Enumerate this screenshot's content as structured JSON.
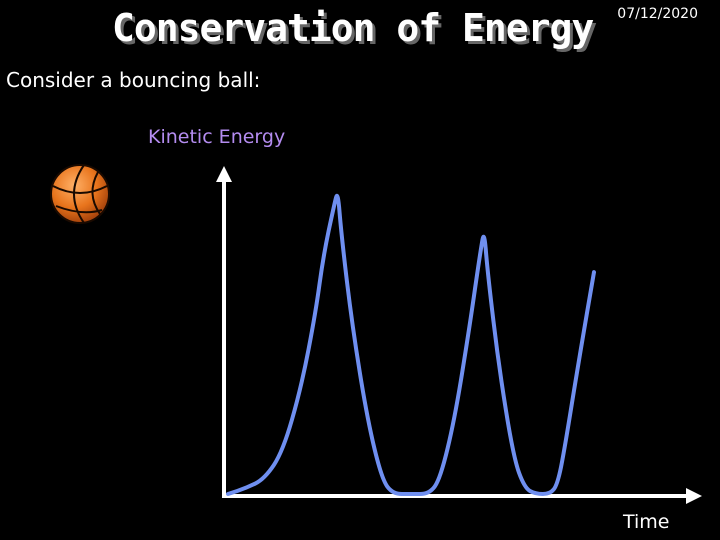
{
  "slide": {
    "title": "Conservation of Energy",
    "date": "07/12/2020",
    "subtitle": "Consider a bouncing ball:"
  },
  "colors": {
    "background": "#000000",
    "text": "#ffffff",
    "curve": "#6f8ff0",
    "ylabel": "#b48cf0",
    "ball": "#e8741c"
  },
  "icons": [
    "basketball-icon"
  ],
  "chart_data": {
    "type": "line",
    "title": "",
    "xlabel": "Time",
    "ylabel": "Kinetic Energy",
    "axes_ticks": false,
    "grid": false,
    "series": [
      {
        "x": [
          0,
          0.05,
          0.1,
          0.15,
          0.2,
          0.24,
          0.26,
          0.29,
          0.3,
          0.31,
          0.34,
          0.38,
          0.42,
          0.45,
          0.5,
          0.55,
          0.58,
          0.62,
          0.66,
          0.69,
          0.7,
          0.71,
          0.74,
          0.78,
          0.81,
          0.84,
          0.88,
          0.9,
          0.92,
          0.96,
          1.0
        ],
        "y": [
          0,
          0.02,
          0.05,
          0.14,
          0.35,
          0.6,
          0.78,
          0.95,
          1.0,
          0.85,
          0.55,
          0.25,
          0.05,
          0,
          0,
          0,
          0.05,
          0.25,
          0.55,
          0.8,
          0.87,
          0.72,
          0.42,
          0.12,
          0.02,
          0,
          0,
          0.03,
          0.15,
          0.45,
          0.73
        ]
      }
    ]
  }
}
